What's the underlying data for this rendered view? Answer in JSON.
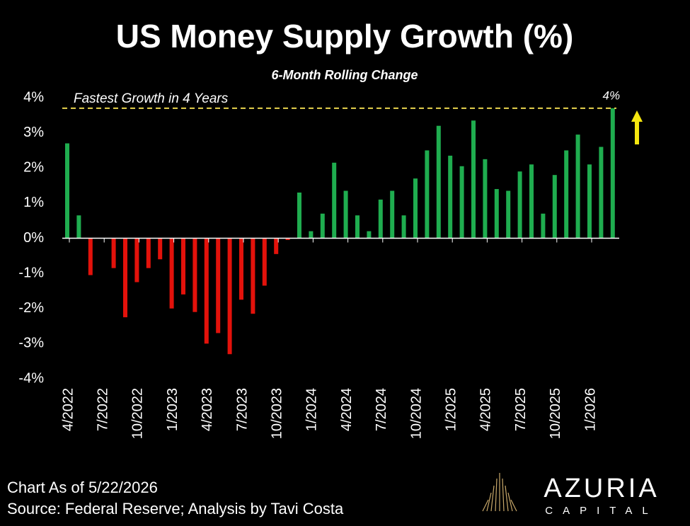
{
  "chart_data": {
    "type": "bar",
    "title": "US Money Supply Growth (%)",
    "subtitle": "6-Month Rolling Change",
    "categories": [
      "4/2022",
      null,
      null,
      "7/2022",
      null,
      null,
      "10/2022",
      null,
      null,
      "1/2023",
      null,
      null,
      "4/2023",
      null,
      null,
      "7/2023",
      null,
      null,
      "10/2023",
      null,
      null,
      "1/2024",
      null,
      null,
      "4/2024",
      null,
      null,
      "7/2024",
      null,
      null,
      "10/2024",
      null,
      null,
      "1/2025",
      null,
      null,
      "4/2025",
      null,
      null,
      "7/2025",
      null,
      null,
      "10/2025",
      null,
      null,
      "1/2026",
      null,
      null
    ],
    "values": [
      2.7,
      0.65,
      -1.05,
      0,
      -0.85,
      -2.25,
      -1.25,
      -0.85,
      -0.6,
      -2.0,
      -1.6,
      -2.1,
      -3.0,
      -2.7,
      -3.3,
      -1.75,
      -2.15,
      -1.35,
      -0.45,
      -0.05,
      1.3,
      0.2,
      0.7,
      2.15,
      1.35,
      0.65,
      0.2,
      1.1,
      1.35,
      0.65,
      1.7,
      2.5,
      3.2,
      2.35,
      2.05,
      3.35,
      2.25,
      1.4,
      1.35,
      1.9,
      2.1,
      0.7,
      1.8,
      2.5,
      2.95,
      2.1,
      2.6,
      3.7
    ],
    "value_labels": [
      null,
      null,
      null,
      null,
      null,
      null,
      null,
      null,
      null,
      null,
      null,
      null,
      null,
      null,
      null,
      null,
      null,
      null,
      null,
      null,
      null,
      null,
      null,
      null,
      null,
      null,
      null,
      null,
      null,
      null,
      null,
      null,
      null,
      null,
      null,
      null,
      null,
      null,
      null,
      null,
      null,
      null,
      null,
      null,
      null,
      null,
      null,
      "4%"
    ],
    "positive_color": "#1fad4f",
    "negative_color": "#e3120b",
    "ylim": [
      -4,
      4
    ],
    "yticks": [
      {
        "value": -4,
        "label": "-4%"
      },
      {
        "value": -3,
        "label": "-3%"
      },
      {
        "value": -2,
        "label": "-2%"
      },
      {
        "value": -1,
        "label": "-1%"
      },
      {
        "value": 0,
        "label": "0%"
      },
      {
        "value": 1,
        "label": "1%"
      },
      {
        "value": 2,
        "label": "2%"
      },
      {
        "value": 3,
        "label": "3%"
      },
      {
        "value": 4,
        "label": "4%"
      }
    ],
    "reference_line": {
      "value": 3.7,
      "label": "Fastest Growth in 4 Years",
      "color": "#e8d44d"
    },
    "footer": [
      "Chart As of 5/22/2026",
      "Source: Federal Reserve; Analysis by Tavi Costa"
    ],
    "logo": {
      "name": "AZURIA",
      "tagline": "CAPITAL"
    }
  }
}
